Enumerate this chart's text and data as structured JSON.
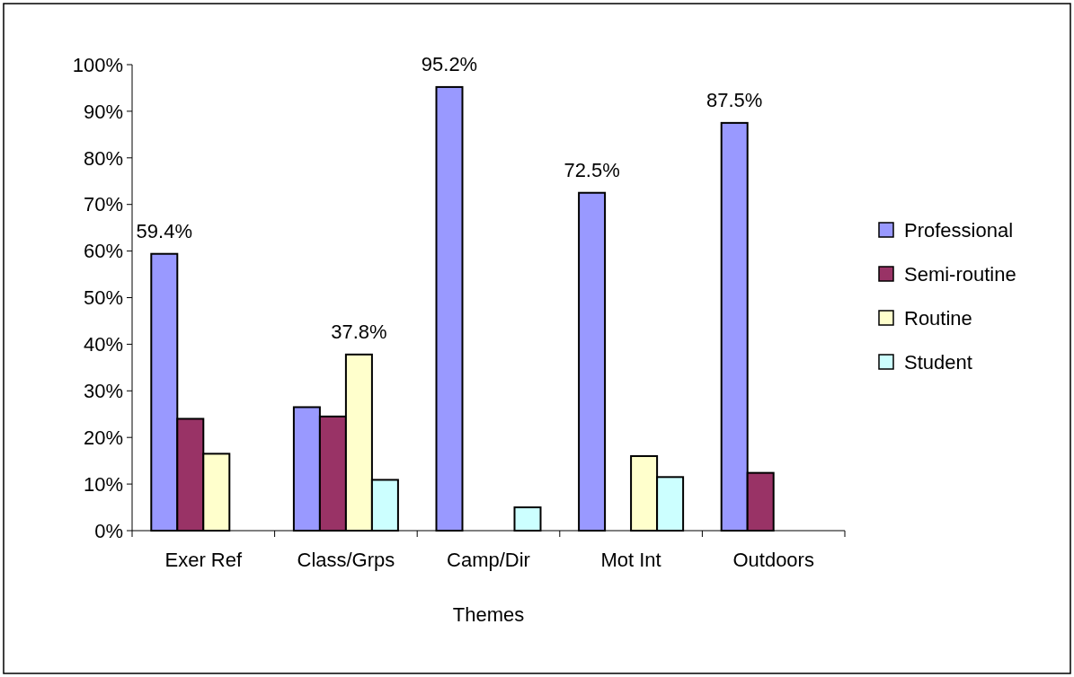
{
  "chart_data": {
    "type": "bar",
    "xlabel": "Themes",
    "categories": [
      "Exer Ref",
      "Class/Grps",
      "Camp/Dir",
      "Mot Int",
      "Outdoors"
    ],
    "series": [
      {
        "name": "Professional",
        "color": "#9999ff",
        "values": [
          59.4,
          26.5,
          95.2,
          72.5,
          87.5
        ],
        "value_labels": [
          "59.4%",
          null,
          "95.2%",
          "72.5%",
          "87.5%"
        ]
      },
      {
        "name": "Semi-routine",
        "color": "#993366",
        "values": [
          24.0,
          24.5,
          null,
          null,
          12.4
        ]
      },
      {
        "name": "Routine",
        "color": "#ffffcc",
        "values": [
          16.5,
          37.8,
          null,
          16.0,
          null
        ],
        "value_labels": [
          null,
          "37.8%",
          null,
          null,
          null
        ]
      },
      {
        "name": "Student",
        "color": "#ccffff",
        "values": [
          null,
          10.9,
          5.0,
          11.5,
          null
        ]
      }
    ],
    "ylim": [
      0,
      100
    ],
    "yticks": [
      {
        "value": 0,
        "label": "0%"
      },
      {
        "value": 10,
        "label": "10%"
      },
      {
        "value": 20,
        "label": "20%"
      },
      {
        "value": 30,
        "label": "30%"
      },
      {
        "value": 40,
        "label": "40%"
      },
      {
        "value": 50,
        "label": "50%"
      },
      {
        "value": 60,
        "label": "60%"
      },
      {
        "value": 70,
        "label": "70%"
      },
      {
        "value": 80,
        "label": "80%"
      },
      {
        "value": 90,
        "label": "90%"
      },
      {
        "value": 100,
        "label": "100%"
      }
    ],
    "grid": false,
    "legend": "right"
  }
}
